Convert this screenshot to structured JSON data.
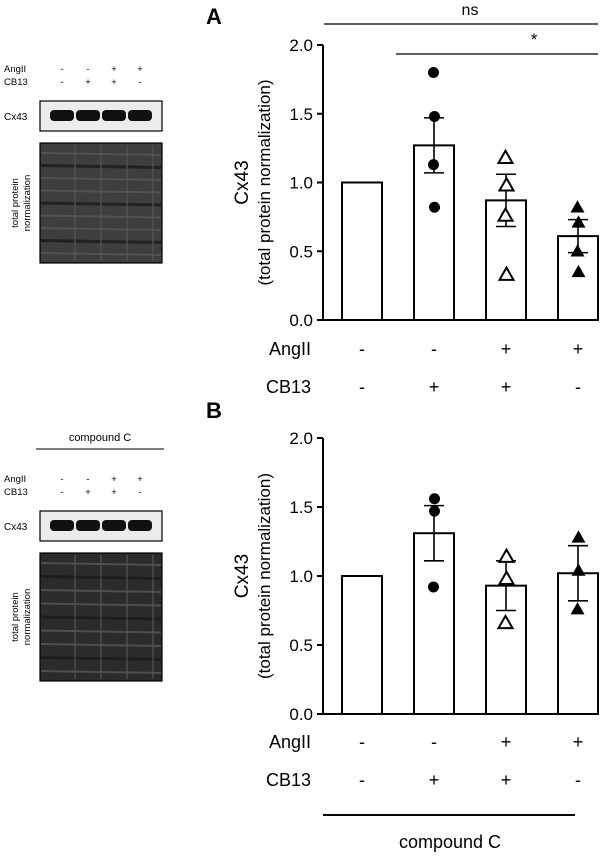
{
  "blots": [
    {
      "header": "",
      "row_labels": [
        "AngII",
        "CB13"
      ],
      "signs": [
        [
          "-",
          "-",
          "+",
          "+"
        ],
        [
          "-",
          "+",
          "+",
          "-"
        ]
      ],
      "band_label": "Cx43",
      "total_label": [
        "total protein",
        "normalization"
      ]
    },
    {
      "header": "compound C",
      "row_labels": [
        "AngII",
        "CB13"
      ],
      "signs": [
        [
          "-",
          "-",
          "+",
          "+"
        ],
        [
          "-",
          "+",
          "+",
          "-"
        ]
      ],
      "band_label": "Cx43",
      "total_label": [
        "total protein",
        "normalization"
      ]
    }
  ],
  "chart_data": [
    {
      "type": "bar",
      "panel_label": "A",
      "ylabel_lines": [
        "Cx43",
        "(total protein normalization)"
      ],
      "ylim": [
        0,
        2.0
      ],
      "yticks": [
        "0.0",
        "0.5",
        "1.0",
        "1.5",
        "2.0"
      ],
      "row_labels": [
        "AngII",
        "CB13"
      ],
      "conditions": [
        {
          "AngII": "-",
          "CB13": "-",
          "mean": 1.0,
          "sem": 0,
          "marker": "none",
          "points": []
        },
        {
          "AngII": "-",
          "CB13": "+",
          "mean": 1.27,
          "sem": 0.2,
          "marker": "circle",
          "points": [
            1.8,
            1.48,
            1.13,
            0.82
          ]
        },
        {
          "AngII": "+",
          "CB13": "+",
          "mean": 0.87,
          "sem": 0.19,
          "marker": "open-triangle",
          "points": [
            1.18,
            0.98,
            0.76,
            0.33
          ]
        },
        {
          "AngII": "+",
          "CB13": "-",
          "mean": 0.61,
          "sem": 0.12,
          "marker": "filled-triangle",
          "points": [
            0.82,
            0.71,
            0.5,
            0.35
          ]
        }
      ],
      "significance": [
        {
          "from": 0,
          "to": 3,
          "label": "ns"
        },
        {
          "from": 1,
          "to": 3,
          "label": "*"
        }
      ],
      "footer": ""
    },
    {
      "type": "bar",
      "panel_label": "B",
      "ylabel_lines": [
        "Cx43",
        "(total protein normalization)"
      ],
      "ylim": [
        0,
        2.0
      ],
      "yticks": [
        "0.0",
        "0.5",
        "1.0",
        "1.5",
        "2.0"
      ],
      "row_labels": [
        "AngII",
        "CB13"
      ],
      "conditions": [
        {
          "AngII": "-",
          "CB13": "-",
          "mean": 1.0,
          "sem": 0,
          "marker": "none",
          "points": []
        },
        {
          "AngII": "-",
          "CB13": "+",
          "mean": 1.31,
          "sem": 0.2,
          "marker": "circle",
          "points": [
            1.56,
            1.47,
            0.92
          ]
        },
        {
          "AngII": "+",
          "CB13": "+",
          "mean": 0.93,
          "sem": 0.18,
          "marker": "open-triangle",
          "points": [
            1.14,
            0.98,
            0.66
          ]
        },
        {
          "AngII": "+",
          "CB13": "-",
          "mean": 1.02,
          "sem": 0.2,
          "marker": "filled-triangle",
          "points": [
            1.28,
            1.04,
            0.76
          ]
        }
      ],
      "significance": [],
      "footer": "compound C"
    }
  ]
}
